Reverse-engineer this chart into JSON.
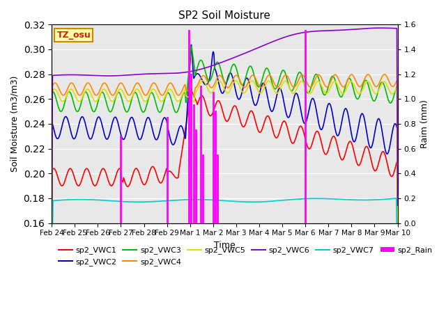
{
  "title": "SP2 Soil Moisture",
  "ylabel_left": "Soil Moisture (m3/m3)",
  "ylabel_right": "Raim (mm)",
  "xlabel": "Time",
  "timezone_label": "TZ_osu",
  "ylim_left": [
    0.16,
    0.32
  ],
  "ylim_right": [
    0.0,
    1.6
  ],
  "bg_color": "#e8e8e8",
  "fig_color": "#ffffff",
  "series_colors": {
    "sp2_VWC1": "#ff0000",
    "sp2_VWC2": "#0000cc",
    "sp2_VWC3": "#00bb00",
    "sp2_VWC4": "#ff8800",
    "sp2_VWC5": "#dddd00",
    "sp2_VWC6": "#8800cc",
    "sp2_VWC7": "#00cccc",
    "sp2_Rain": "#ff00ff"
  },
  "xtick_labels": [
    "Feb 24",
    "Feb 25",
    "Feb 26",
    "Feb 27",
    "Feb 28",
    "Feb 29",
    "Mar 1",
    "Mar 2",
    "Mar 3",
    "Mar 4",
    "Mar 5",
    "Mar 6",
    "Mar 7",
    "Mar 8",
    "Mar 9",
    "Mar 10"
  ],
  "n_points": 4000
}
